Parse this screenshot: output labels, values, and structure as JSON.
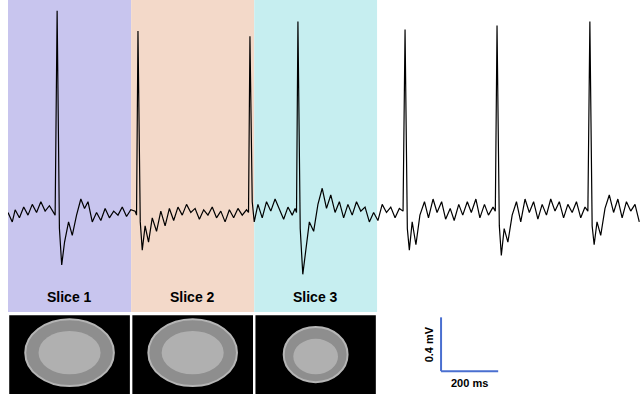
{
  "chart_data": {
    "type": "line",
    "tick_labels": false,
    "grid": false,
    "xlim": [
      0,
      2216
    ],
    "ylim": [
      -1.33,
      1.6
    ],
    "series": [
      {
        "color": "#000000",
        "x": [
          0,
          15,
          25,
          40,
          55,
          70,
          85,
          100,
          115,
          130,
          145,
          158,
          165,
          172,
          180,
          188,
          198,
          212,
          225,
          240,
          255,
          268,
          280,
          295,
          310,
          325,
          340,
          355,
          370,
          385,
          400,
          415,
          430,
          445,
          450,
          455,
          463,
          470,
          480,
          492,
          505,
          520,
          535,
          550,
          565,
          580,
          595,
          610,
          625,
          640,
          655,
          670,
          685,
          700,
          715,
          730,
          745,
          760,
          775,
          790,
          805,
          820,
          835,
          842,
          847,
          855,
          862,
          875,
          890,
          905,
          920,
          935,
          950,
          965,
          980,
          995,
          1005,
          1010,
          1015,
          1023,
          1032,
          1042,
          1055,
          1070,
          1085,
          1100,
          1115,
          1130,
          1145,
          1160,
          1175,
          1190,
          1205,
          1220,
          1235,
          1250,
          1265,
          1280,
          1295,
          1310,
          1325,
          1340,
          1355,
          1370,
          1383,
          1390,
          1398,
          1405,
          1415,
          1428,
          1442,
          1458,
          1472,
          1488,
          1502,
          1518,
          1532,
          1548,
          1562,
          1578,
          1592,
          1608,
          1622,
          1638,
          1652,
          1668,
          1682,
          1698,
          1706,
          1712,
          1720,
          1727,
          1737,
          1750,
          1765,
          1780,
          1795,
          1810,
          1825,
          1840,
          1855,
          1870,
          1885,
          1900,
          1915,
          1930,
          1945,
          1960,
          1975,
          1990,
          2005,
          2020,
          2030,
          2037,
          2045,
          2052,
          2062,
          2075,
          2090,
          2105,
          2120,
          2135,
          2150,
          2165,
          2180,
          2195,
          2210
        ],
        "values": [
          0.02,
          -0.05,
          0.04,
          -0.02,
          0.06,
          0.0,
          0.08,
          0.02,
          0.1,
          0.03,
          0.07,
          0.02,
          0.0,
          1.52,
          -0.1,
          -0.37,
          -0.2,
          -0.05,
          -0.15,
          0.0,
          0.12,
          0.05,
          0.1,
          -0.05,
          0.02,
          -0.04,
          0.05,
          -0.02,
          0.03,
          0.0,
          0.06,
          -0.01,
          0.04,
          0.03,
          0.0,
          1.37,
          -0.05,
          -0.26,
          -0.08,
          -0.2,
          -0.02,
          -0.12,
          0.03,
          -0.08,
          0.05,
          -0.04,
          0.06,
          0.0,
          0.08,
          0.02,
          0.05,
          -0.03,
          0.04,
          0.0,
          0.06,
          -0.02,
          0.03,
          -0.05,
          0.04,
          -0.02,
          0.05,
          0.0,
          0.04,
          0.02,
          1.33,
          0.1,
          -0.05,
          0.08,
          -0.02,
          0.1,
          0.03,
          0.12,
          0.05,
          -0.03,
          0.06,
          0.0,
          0.05,
          0.02,
          1.44,
          -0.1,
          -0.44,
          -0.25,
          -0.05,
          -0.12,
          0.08,
          0.2,
          0.05,
          0.15,
          0.02,
          0.1,
          -0.02,
          0.08,
          0.0,
          0.1,
          0.03,
          0.06,
          -0.05,
          0.02,
          -0.04,
          0.08,
          0.02,
          0.06,
          -0.02,
          0.05,
          0.03,
          1.38,
          -0.1,
          -0.26,
          -0.05,
          -0.22,
          0.0,
          0.1,
          -0.02,
          0.12,
          0.02,
          0.1,
          -0.03,
          0.05,
          -0.04,
          0.08,
          0.0,
          0.1,
          0.02,
          0.12,
          -0.02,
          0.08,
          0.0,
          0.06,
          0.03,
          1.41,
          -0.08,
          -0.3,
          -0.1,
          -0.2,
          0.0,
          0.1,
          -0.05,
          0.12,
          0.02,
          0.1,
          -0.03,
          0.08,
          0.0,
          0.12,
          0.03,
          0.1,
          -0.02,
          0.08,
          0.02,
          0.1,
          -0.02,
          0.06,
          0.03,
          1.44,
          -0.08,
          -0.22,
          -0.05,
          -0.15,
          0.05,
          0.15,
          0.02,
          0.12,
          -0.02,
          0.1,
          0.03,
          0.08,
          -0.05
        ]
      }
    ],
    "regions": [
      {
        "label": "Slice 1",
        "x": [
          0,
          431
        ],
        "color": "#c8c5ee"
      },
      {
        "label": "Slice 2",
        "x": [
          431,
          862
        ],
        "color": "#f3d9c9"
      },
      {
        "label": "Slice 3",
        "x": [
          862,
          1292
        ],
        "color": "#c6eef0"
      }
    ],
    "scale_bar": {
      "x": 1516,
      "y": -1.16,
      "x_length": 200,
      "y_length": 0.4,
      "x_label": "200 ms",
      "y_label": "0.4 mV"
    }
  }
}
